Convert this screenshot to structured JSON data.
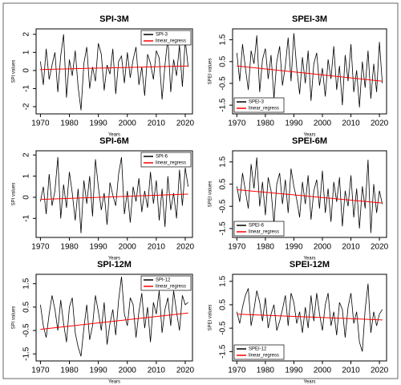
{
  "chart_data": [
    {
      "type": "line",
      "title": "SPI-3M",
      "xlabel": "Years",
      "ylabel": "SPI values",
      "legend": "top-right",
      "x": [
        1970,
        1971,
        1972,
        1973,
        1974,
        1975,
        1976,
        1977,
        1978,
        1979,
        1980,
        1981,
        1982,
        1983,
        1984,
        1985,
        1986,
        1987,
        1988,
        1989,
        1990,
        1991,
        1992,
        1993,
        1994,
        1995,
        1996,
        1997,
        1998,
        1999,
        2000,
        2001,
        2002,
        2003,
        2004,
        2005,
        2006,
        2007,
        2008,
        2009,
        2010,
        2011,
        2012,
        2013,
        2014,
        2015,
        2016,
        2017,
        2018,
        2019,
        2020,
        2021
      ],
      "xlim": [
        1968.5,
        2022.5
      ],
      "xticks": [
        1970,
        1980,
        1990,
        2000,
        2010,
        2020
      ],
      "ylim": [
        -2.4,
        2.3
      ],
      "yticks": [
        -2,
        -1,
        0,
        1,
        2
      ],
      "series": [
        {
          "name": "SPI-3",
          "color": "#000000",
          "values": [
            0.5,
            -0.8,
            1.2,
            -0.5,
            0.3,
            1.0,
            -1.2,
            0.8,
            2.0,
            -1.5,
            0.6,
            -0.3,
            1.1,
            -0.9,
            -2.2,
            0.4,
            1.3,
            -1.0,
            0.2,
            -0.6,
            1.5,
            0.9,
            -1.1,
            0.3,
            -0.2,
            1.2,
            -1.3,
            0.5,
            0.8,
            -0.7,
            1.0,
            -0.4,
            0.6,
            1.3,
            -0.8,
            0.2,
            -1.4,
            0.9,
            0.4,
            -0.5,
            1.1,
            0.7,
            -1.6,
            0.3,
            1.8,
            -1.2,
            0.6,
            -0.3,
            1.4,
            -0.9,
            1.7,
            0.2
          ]
        },
        {
          "name": "linear_regress",
          "color": "#ff0000",
          "x": [
            1970,
            2021
          ],
          "values": [
            0.05,
            0.25
          ]
        }
      ]
    },
    {
      "type": "line",
      "title": "SPEI-3M",
      "xlabel": "Years",
      "ylabel": "SPEI values",
      "legend": "bottom-left",
      "x": [
        1970,
        1971,
        1972,
        1973,
        1974,
        1975,
        1976,
        1977,
        1978,
        1979,
        1980,
        1981,
        1982,
        1983,
        1984,
        1985,
        1986,
        1987,
        1988,
        1989,
        1990,
        1991,
        1992,
        1993,
        1994,
        1995,
        1996,
        1997,
        1998,
        1999,
        2000,
        2001,
        2002,
        2003,
        2004,
        2005,
        2006,
        2007,
        2008,
        2009,
        2010,
        2011,
        2012,
        2013,
        2014,
        2015,
        2016,
        2017,
        2018,
        2019,
        2020,
        2021
      ],
      "xlim": [
        1968.5,
        2022.5
      ],
      "xticks": [
        1970,
        1980,
        1990,
        2000,
        2010,
        2020
      ],
      "ylim": [
        -1.9,
        2.0
      ],
      "yticks": [
        -1.5,
        -0.5,
        0.5,
        1.5
      ],
      "series": [
        {
          "name": "SPEI-3",
          "color": "#000000",
          "values": [
            0.9,
            -0.4,
            1.3,
            0.2,
            -0.8,
            1.0,
            0.4,
            1.7,
            -0.9,
            0.6,
            1.1,
            -0.3,
            0.8,
            -1.2,
            0.5,
            1.2,
            -0.6,
            0.3,
            1.6,
            -0.4,
            1.8,
            0.2,
            -1.0,
            0.7,
            -0.5,
            1.0,
            -1.3,
            0.4,
            0.9,
            -0.6,
            0.2,
            -1.1,
            0.6,
            -0.3,
            1.2,
            -0.8,
            0.3,
            -1.5,
            0.8,
            -0.4,
            1.3,
            -0.9,
            0.1,
            -1.6,
            0.5,
            -0.7,
            1.0,
            -1.2,
            0.4,
            -0.9,
            1.4,
            -0.5
          ]
        },
        {
          "name": "linear_regress",
          "color": "#ff0000",
          "x": [
            1970,
            2021
          ],
          "values": [
            0.3,
            -0.4
          ]
        }
      ]
    },
    {
      "type": "line",
      "title": "SPI-6M",
      "xlabel": "Years",
      "ylabel": "SPI values",
      "legend": "top-right",
      "x": [
        1970,
        1971,
        1972,
        1973,
        1974,
        1975,
        1976,
        1977,
        1978,
        1979,
        1980,
        1981,
        1982,
        1983,
        1984,
        1985,
        1986,
        1987,
        1988,
        1989,
        1990,
        1991,
        1992,
        1993,
        1994,
        1995,
        1996,
        1997,
        1998,
        1999,
        2000,
        2001,
        2002,
        2003,
        2004,
        2005,
        2006,
        2007,
        2008,
        2009,
        2010,
        2011,
        2012,
        2013,
        2014,
        2015,
        2016,
        2017,
        2018,
        2019,
        2020,
        2021
      ],
      "xlim": [
        1968.5,
        2022.5
      ],
      "xticks": [
        1970,
        1980,
        1990,
        2000,
        2010,
        2020
      ],
      "ylim": [
        -1.9,
        2.2
      ],
      "yticks": [
        -1,
        0,
        1,
        2
      ],
      "series": [
        {
          "name": "SPI-6",
          "color": "#000000",
          "values": [
            -0.2,
            0.5,
            -0.8,
            1.1,
            -0.4,
            0.3,
            1.9,
            -1.0,
            0.6,
            -0.5,
            1.2,
            0.2,
            -1.1,
            0.4,
            -1.7,
            0.8,
            -0.3,
            1.0,
            -0.9,
            1.8,
            0.5,
            -0.6,
            0.2,
            -1.3,
            0.7,
            0.1,
            -0.4,
            1.1,
            1.9,
            -0.8,
            0.3,
            -1.2,
            0.5,
            -0.2,
            0.9,
            -0.7,
            0.3,
            -0.5,
            1.2,
            -0.3,
            0.8,
            -1.1,
            0.4,
            -1.4,
            1.0,
            -0.6,
            0.2,
            -1.0,
            1.3,
            -0.4,
            1.4,
            0.5
          ]
        },
        {
          "name": "linear_regress",
          "color": "#ff0000",
          "x": [
            1970,
            2021
          ],
          "values": [
            -0.1,
            0.15
          ]
        }
      ]
    },
    {
      "type": "line",
      "title": "SPEI-6M",
      "xlabel": "Years",
      "ylabel": "SPEI values",
      "legend": "bottom-left",
      "x": [
        1970,
        1971,
        1972,
        1973,
        1974,
        1975,
        1976,
        1977,
        1978,
        1979,
        1980,
        1981,
        1982,
        1983,
        1984,
        1985,
        1986,
        1987,
        1988,
        1989,
        1990,
        1991,
        1992,
        1993,
        1994,
        1995,
        1996,
        1997,
        1998,
        1999,
        2000,
        2001,
        2002,
        2003,
        2004,
        2005,
        2006,
        2007,
        2008,
        2009,
        2010,
        2011,
        2012,
        2013,
        2014,
        2015,
        2016,
        2017,
        2018,
        2019,
        2020,
        2021
      ],
      "xlim": [
        1968.5,
        2022.5
      ],
      "xticks": [
        1970,
        1980,
        1990,
        2000,
        2010,
        2020
      ],
      "ylim": [
        -1.9,
        2.0
      ],
      "yticks": [
        -1.5,
        -0.5,
        0.5,
        1.5
      ],
      "series": [
        {
          "name": "SPEI-6",
          "color": "#000000",
          "values": [
            0.4,
            -0.3,
            1.0,
            0.2,
            -0.6,
            1.4,
            0.3,
            1.7,
            -0.5,
            0.6,
            -0.9,
            0.8,
            0.2,
            -1.3,
            0.5,
            1.0,
            -0.4,
            0.7,
            -0.8,
            1.2,
            0.4,
            -0.2,
            -1.0,
            0.6,
            -0.4,
            0.9,
            -1.1,
            0.2,
            0.7,
            -0.6,
            1.1,
            -0.8,
            0.3,
            -1.2,
            0.6,
            -0.3,
            0.8,
            -1.4,
            0.2,
            -0.5,
            0.9,
            -1.0,
            0.3,
            -1.5,
            0.4,
            -0.6,
            1.6,
            -1.7,
            0.5,
            -0.8,
            0.2,
            -0.4
          ]
        },
        {
          "name": "linear_regress",
          "color": "#ff0000",
          "x": [
            1970,
            2021
          ],
          "values": [
            0.25,
            -0.35
          ]
        }
      ]
    },
    {
      "type": "line",
      "title": "SPI-12M",
      "xlabel": "Years",
      "ylabel": "SPI values",
      "legend": "top-right",
      "x": [
        1970,
        1971,
        1972,
        1973,
        1974,
        1975,
        1976,
        1977,
        1978,
        1979,
        1980,
        1981,
        1982,
        1983,
        1984,
        1985,
        1986,
        1987,
        1988,
        1989,
        1990,
        1991,
        1992,
        1993,
        1994,
        1995,
        1996,
        1997,
        1998,
        1999,
        2000,
        2001,
        2002,
        2003,
        2004,
        2005,
        2006,
        2007,
        2008,
        2009,
        2010,
        2011,
        2012,
        2013,
        2014,
        2015,
        2016,
        2017,
        2018,
        2019,
        2020,
        2021
      ],
      "xlim": [
        1968.5,
        2022.5
      ],
      "xticks": [
        1970,
        1980,
        1990,
        2000,
        2010,
        2020
      ],
      "ylim": [
        -1.8,
        1.9
      ],
      "yticks": [
        -1.5,
        -0.5,
        0.5,
        1.5
      ],
      "series": [
        {
          "name": "SPI-12",
          "color": "#000000",
          "values": [
            0.6,
            -0.3,
            -0.8,
            0.2,
            1.0,
            0.4,
            -0.5,
            0.8,
            -0.2,
            -1.0,
            0.5,
            0.9,
            -0.6,
            -1.2,
            -1.6,
            -0.4,
            0.6,
            -0.9,
            -0.3,
            1.0,
            0.3,
            -0.5,
            0.7,
            -1.1,
            -0.2,
            0.4,
            -0.7,
            0.8,
            1.8,
            0.2,
            -0.3,
            0.9,
            0.6,
            -0.8,
            0.3,
            1.1,
            -0.4,
            0.5,
            -1.0,
            0.7,
            0.2,
            1.2,
            -0.6,
            0.4,
            0.9,
            -0.3,
            1.2,
            0.3,
            -0.5,
            1.0,
            0.6,
            0.7
          ]
        },
        {
          "name": "linear_regress",
          "color": "#ff0000",
          "x": [
            1970,
            2021
          ],
          "values": [
            -0.45,
            0.25
          ]
        }
      ]
    },
    {
      "type": "line",
      "title": "SPEI-12M",
      "xlabel": "Years",
      "ylabel": "SPEI values",
      "legend": "bottom-left",
      "x": [
        1970,
        1971,
        1972,
        1973,
        1974,
        1975,
        1976,
        1977,
        1978,
        1979,
        1980,
        1981,
        1982,
        1983,
        1984,
        1985,
        1986,
        1987,
        1988,
        1989,
        1990,
        1991,
        1992,
        1993,
        1994,
        1995,
        1996,
        1997,
        1998,
        1999,
        2000,
        2001,
        2002,
        2003,
        2004,
        2005,
        2006,
        2007,
        2008,
        2009,
        2010,
        2011,
        2012,
        2013,
        2014,
        2015,
        2016,
        2017,
        2018,
        2019,
        2020,
        2021
      ],
      "xlim": [
        1968.5,
        2022.5
      ],
      "xticks": [
        1970,
        1980,
        1990,
        2000,
        2010,
        2020
      ],
      "ylim": [
        -1.9,
        1.8
      ],
      "yticks": [
        -1.5,
        -0.5,
        0.5,
        1.5
      ],
      "series": [
        {
          "name": "SPEI-12",
          "color": "#000000",
          "values": [
            0.2,
            -0.3,
            0.4,
            0.9,
            1.2,
            -0.4,
            0.3,
            1.1,
            0.6,
            -0.2,
            0.8,
            -0.5,
            0.1,
            0.5,
            -0.6,
            -0.2,
            0.3,
            0.9,
            -0.4,
            1.0,
            0.6,
            -0.3,
            0.2,
            -0.7,
            0.4,
            -0.5,
            0.9,
            -0.2,
            1.0,
            0.1,
            -0.6,
            0.5,
            1.0,
            -0.4,
            0.2,
            -0.8,
            0.6,
            0.3,
            -0.9,
            0.4,
            1.0,
            -0.3,
            0.2,
            -1.1,
            -1.5,
            0.3,
            1.4,
            -0.7,
            0.2,
            -0.4,
            0.1,
            0.3
          ]
        },
        {
          "name": "linear_regress",
          "color": "#ff0000",
          "x": [
            1970,
            2021
          ],
          "values": [
            0.1,
            -0.15
          ]
        }
      ]
    }
  ]
}
